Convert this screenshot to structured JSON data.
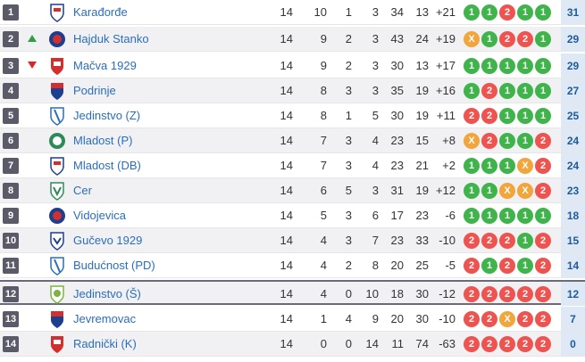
{
  "colors": {
    "win": "#3fb44a",
    "draw": "#f2a53a",
    "loss": "#ef5350",
    "team_link": "#2a6ebb",
    "points_bg": "#dfe9f5"
  },
  "rows": [
    {
      "pos": "1",
      "trend": "",
      "crest": "shield-blue-red",
      "team": "Karađorđe",
      "p": "14",
      "w": "10",
      "d": "1",
      "l": "3",
      "gf": "34",
      "ga": "13",
      "gd": "+21",
      "form": [
        "1",
        "1",
        "2",
        "1",
        "1"
      ],
      "pts": "31"
    },
    {
      "pos": "2",
      "trend": "up",
      "crest": "round-blue-red",
      "team": "Hajduk Stanko",
      "p": "14",
      "w": "9",
      "d": "2",
      "l": "3",
      "gf": "43",
      "ga": "24",
      "gd": "+19",
      "form": [
        "X",
        "1",
        "2",
        "2",
        "1"
      ],
      "pts": "29"
    },
    {
      "pos": "3",
      "trend": "down",
      "crest": "shield-red-white",
      "team": "Mačva 1929",
      "p": "14",
      "w": "9",
      "d": "2",
      "l": "3",
      "gf": "30",
      "ga": "13",
      "gd": "+17",
      "form": [
        "1",
        "1",
        "1",
        "1",
        "1"
      ],
      "pts": "29"
    },
    {
      "pos": "4",
      "trend": "",
      "crest": "shield-red-blue",
      "team": "Podrinje",
      "p": "14",
      "w": "8",
      "d": "3",
      "l": "3",
      "gf": "35",
      "ga": "19",
      "gd": "+16",
      "form": [
        "1",
        "2",
        "1",
        "1",
        "1"
      ],
      "pts": "27"
    },
    {
      "pos": "5",
      "trend": "",
      "crest": "shield-blue-stripe",
      "team": "Jedinstvo (Z)",
      "p": "14",
      "w": "8",
      "d": "1",
      "l": "5",
      "gf": "30",
      "ga": "19",
      "gd": "+11",
      "form": [
        "2",
        "2",
        "1",
        "1",
        "1"
      ],
      "pts": "25"
    },
    {
      "pos": "6",
      "trend": "",
      "crest": "round-green",
      "team": "Mladost (P)",
      "p": "14",
      "w": "7",
      "d": "3",
      "l": "4",
      "gf": "23",
      "ga": "15",
      "gd": "+8",
      "form": [
        "X",
        "2",
        "1",
        "1",
        "2"
      ],
      "pts": "24"
    },
    {
      "pos": "7",
      "trend": "",
      "crest": "shield-blue-red",
      "team": "Mladost (DB)",
      "p": "14",
      "w": "7",
      "d": "3",
      "l": "4",
      "gf": "23",
      "ga": "21",
      "gd": "+2",
      "form": [
        "1",
        "1",
        "1",
        "X",
        "2"
      ],
      "pts": "24"
    },
    {
      "pos": "8",
      "trend": "",
      "crest": "shield-green",
      "team": "Cer",
      "p": "14",
      "w": "6",
      "d": "5",
      "l": "3",
      "gf": "31",
      "ga": "19",
      "gd": "+12",
      "form": [
        "1",
        "1",
        "X",
        "X",
        "2"
      ],
      "pts": "23"
    },
    {
      "pos": "9",
      "trend": "",
      "crest": "round-blue-red",
      "team": "Vidojevica",
      "p": "14",
      "w": "5",
      "d": "3",
      "l": "6",
      "gf": "17",
      "ga": "23",
      "gd": "-6",
      "form": [
        "1",
        "1",
        "1",
        "1",
        "1"
      ],
      "pts": "18"
    },
    {
      "pos": "10",
      "trend": "",
      "crest": "shield-blue-white",
      "team": "Gučevo 1929",
      "p": "14",
      "w": "4",
      "d": "3",
      "l": "7",
      "gf": "23",
      "ga": "33",
      "gd": "-10",
      "form": [
        "2",
        "2",
        "2",
        "1",
        "2"
      ],
      "pts": "15"
    },
    {
      "pos": "11",
      "trend": "",
      "crest": "shield-blue-stripe",
      "team": "Budućnost (PD)",
      "p": "14",
      "w": "4",
      "d": "2",
      "l": "8",
      "gf": "20",
      "ga": "25",
      "gd": "-5",
      "form": [
        "2",
        "1",
        "2",
        "1",
        "2"
      ],
      "pts": "14"
    },
    {
      "pos": "12",
      "trend": "",
      "crest": "shield-green-light",
      "team": "Jedinstvo (Š)",
      "p": "14",
      "w": "4",
      "d": "0",
      "l": "10",
      "gf": "18",
      "ga": "30",
      "gd": "-12",
      "form": [
        "2",
        "2",
        "2",
        "2",
        "2"
      ],
      "pts": "12"
    },
    {
      "pos": "13",
      "trend": "",
      "crest": "shield-red-blue",
      "team": "Jevremovac",
      "p": "14",
      "w": "1",
      "d": "4",
      "l": "9",
      "gf": "20",
      "ga": "30",
      "gd": "-10",
      "form": [
        "2",
        "2",
        "X",
        "2",
        "2"
      ],
      "pts": "7"
    },
    {
      "pos": "14",
      "trend": "",
      "crest": "shield-red-white",
      "team": "Radnički (K)",
      "p": "14",
      "w": "0",
      "d": "0",
      "l": "14",
      "gf": "11",
      "ga": "74",
      "gd": "-63",
      "form": [
        "2",
        "2",
        "2",
        "2",
        "2"
      ],
      "pts": "0"
    }
  ]
}
